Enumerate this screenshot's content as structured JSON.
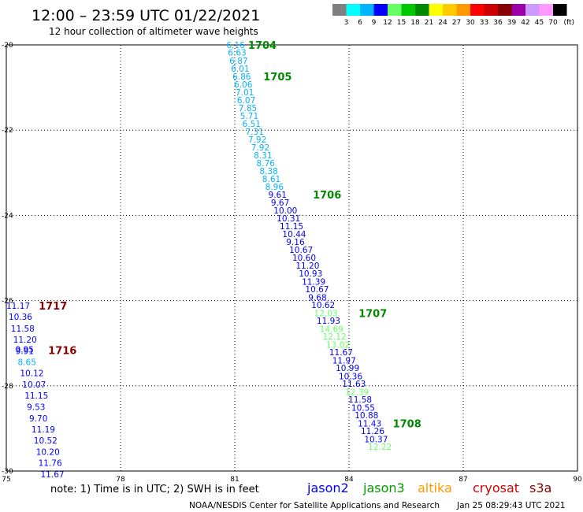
{
  "header": {
    "title": "12:00 – 23:59 UTC 01/22/2021",
    "subtitle": "12 hour collection of altimeter wave heights"
  },
  "colorbar": {
    "labels": [
      "3",
      "6",
      "9",
      "12",
      "15",
      "18",
      "21",
      "24",
      "27",
      "30",
      "33",
      "36",
      "39",
      "42",
      "45",
      "70"
    ],
    "unit": "(ft)",
    "colors": [
      "#7f7f7f",
      "#00ffff",
      "#00b4ff",
      "#0000ff",
      "#66ff66",
      "#00c800",
      "#008800",
      "#ffff00",
      "#ffcc00",
      "#ff9900",
      "#ff0000",
      "#cc0000",
      "#880000",
      "#9900aa",
      "#cc99ff",
      "#ff99ff",
      "#000000"
    ]
  },
  "footer": {
    "note": "note: 1) Time is in UTC; 2) SWH is in feet",
    "satellites": [
      {
        "name": "jason2",
        "color": "#0000ff"
      },
      {
        "name": "jason3",
        "color": "#009900"
      },
      {
        "name": "altika",
        "color": "#ff9900"
      },
      {
        "name": "cryosat",
        "color": "#cc0000"
      },
      {
        "name": "s3a",
        "color": "#880000"
      }
    ],
    "credit": "NOAA/NESDIS Center for Satellite Applications and Research",
    "timestamp": "Jan 25 08:29:43 UTC 2021"
  },
  "chart_data": {
    "type": "scatter",
    "xlim": [
      75,
      90
    ],
    "ylim": [
      -30,
      -20
    ],
    "xticks": [
      "75",
      "78",
      "81",
      "84",
      "87",
      "90"
    ],
    "yticks": [
      "-20",
      "-22",
      "-24",
      "-26",
      "-28",
      "-30"
    ],
    "grid": true,
    "points": [
      {
        "x": 80.78,
        "y": -20.0,
        "v": "6.16",
        "c": "#00b4ff"
      },
      {
        "x": 80.82,
        "y": -20.18,
        "v": "6.63",
        "c": "#00b4ff"
      },
      {
        "x": 80.86,
        "y": -20.37,
        "v": "6.87",
        "c": "#00b4ff"
      },
      {
        "x": 80.9,
        "y": -20.55,
        "v": "6.01",
        "c": "#00b4ff"
      },
      {
        "x": 80.94,
        "y": -20.74,
        "v": "6.86",
        "c": "#00b4ff"
      },
      {
        "x": 80.98,
        "y": -20.92,
        "v": "6.06",
        "c": "#00b4ff"
      },
      {
        "x": 81.02,
        "y": -21.11,
        "v": "7.01",
        "c": "#00b4ff"
      },
      {
        "x": 81.06,
        "y": -21.29,
        "v": "6.07",
        "c": "#00b4ff"
      },
      {
        "x": 81.1,
        "y": -21.48,
        "v": "7.85",
        "c": "#00b4ff"
      },
      {
        "x": 81.14,
        "y": -21.66,
        "v": "5.71",
        "c": "#00b4ff"
      },
      {
        "x": 81.2,
        "y": -21.85,
        "v": "6.51",
        "c": "#00b4ff"
      },
      {
        "x": 81.28,
        "y": -22.03,
        "v": "7.31",
        "c": "#00b4ff"
      },
      {
        "x": 81.35,
        "y": -22.22,
        "v": "7.92",
        "c": "#00b4ff"
      },
      {
        "x": 81.43,
        "y": -22.4,
        "v": "7.92",
        "c": "#00b4ff"
      },
      {
        "x": 81.5,
        "y": -22.59,
        "v": "8.31",
        "c": "#00b4ff"
      },
      {
        "x": 81.57,
        "y": -22.77,
        "v": "8.76",
        "c": "#00b4ff"
      },
      {
        "x": 81.65,
        "y": -22.96,
        "v": "8.38",
        "c": "#00b4ff"
      },
      {
        "x": 81.72,
        "y": -23.14,
        "v": "8.61",
        "c": "#00b4ff"
      },
      {
        "x": 81.8,
        "y": -23.33,
        "v": "8.96",
        "c": "#00b4ff"
      },
      {
        "x": 81.88,
        "y": -23.51,
        "v": "9.61",
        "c": "#0000ff"
      },
      {
        "x": 81.95,
        "y": -23.7,
        "v": "9.67",
        "c": "#0000ff"
      },
      {
        "x": 82.02,
        "y": -23.88,
        "v": "10.00",
        "c": "#0000ff"
      },
      {
        "x": 82.1,
        "y": -24.07,
        "v": "10.31",
        "c": "#0000ff"
      },
      {
        "x": 82.18,
        "y": -24.25,
        "v": "11.15",
        "c": "#0000ff"
      },
      {
        "x": 82.25,
        "y": -24.44,
        "v": "10.44",
        "c": "#0000ff"
      },
      {
        "x": 82.35,
        "y": -24.62,
        "v": "9.16",
        "c": "#0000ff"
      },
      {
        "x": 82.43,
        "y": -24.81,
        "v": "10.67",
        "c": "#0000ff"
      },
      {
        "x": 82.51,
        "y": -24.99,
        "v": "10.60",
        "c": "#0000ff"
      },
      {
        "x": 82.6,
        "y": -25.18,
        "v": "11.20",
        "c": "#0000ff"
      },
      {
        "x": 82.68,
        "y": -25.36,
        "v": "10.93",
        "c": "#0000ff"
      },
      {
        "x": 82.76,
        "y": -25.55,
        "v": "11.39",
        "c": "#0000ff"
      },
      {
        "x": 82.85,
        "y": -25.73,
        "v": "10.67",
        "c": "#0000ff"
      },
      {
        "x": 82.93,
        "y": -25.92,
        "v": "9.68",
        "c": "#0000ff"
      },
      {
        "x": 83.01,
        "y": -26.1,
        "v": "10.62",
        "c": "#0000ff"
      },
      {
        "x": 83.08,
        "y": -26.29,
        "v": "12.03",
        "c": "#66ff66"
      },
      {
        "x": 83.15,
        "y": -26.47,
        "v": "11.93",
        "c": "#0000ff"
      },
      {
        "x": 83.23,
        "y": -26.66,
        "v": "14.69",
        "c": "#66ff66"
      },
      {
        "x": 83.31,
        "y": -26.84,
        "v": "12.12",
        "c": "#66ff66"
      },
      {
        "x": 83.4,
        "y": -27.03,
        "v": "13.02",
        "c": "#66ff66"
      },
      {
        "x": 83.48,
        "y": -27.21,
        "v": "11.67",
        "c": "#0000ff"
      },
      {
        "x": 83.56,
        "y": -27.4,
        "v": "11.97",
        "c": "#0000ff"
      },
      {
        "x": 83.65,
        "y": -27.58,
        "v": "10.99",
        "c": "#0000ff"
      },
      {
        "x": 83.73,
        "y": -27.77,
        "v": "10.36",
        "c": "#0000ff"
      },
      {
        "x": 83.82,
        "y": -27.95,
        "v": "11.63",
        "c": "#0000ff"
      },
      {
        "x": 83.9,
        "y": -28.14,
        "v": "12.39",
        "c": "#66ff66"
      },
      {
        "x": 83.98,
        "y": -28.32,
        "v": "11.58",
        "c": "#0000ff"
      },
      {
        "x": 84.06,
        "y": -28.51,
        "v": "10.55",
        "c": "#0000ff"
      },
      {
        "x": 84.15,
        "y": -28.69,
        "v": "10.88",
        "c": "#0000ff"
      },
      {
        "x": 84.23,
        "y": -28.88,
        "v": "11.43",
        "c": "#0000ff"
      },
      {
        "x": 84.31,
        "y": -29.06,
        "v": "11.26",
        "c": "#0000ff"
      },
      {
        "x": 84.4,
        "y": -29.25,
        "v": "10.37",
        "c": "#0000ff"
      },
      {
        "x": 84.5,
        "y": -29.43,
        "v": "12.22",
        "c": "#66ff66"
      },
      {
        "x": 75.0,
        "y": -26.12,
        "v": "11.17",
        "c": "#0000ff"
      },
      {
        "x": 75.06,
        "y": -26.38,
        "v": "10.36",
        "c": "#0000ff"
      },
      {
        "x": 75.12,
        "y": -26.65,
        "v": "11.58",
        "c": "#0000ff"
      },
      {
        "x": 75.18,
        "y": -26.91,
        "v": "11.20",
        "c": "#0000ff"
      },
      {
        "x": 75.24,
        "y": -27.14,
        "v": "9.95",
        "c": "#0000ff"
      },
      {
        "x": 75.24,
        "y": -27.18,
        "v": "9.91",
        "c": "#0000ff"
      },
      {
        "x": 75.3,
        "y": -27.44,
        "v": "8.65",
        "c": "#00b4ff"
      },
      {
        "x": 75.36,
        "y": -27.7,
        "v": "10.12",
        "c": "#0000ff"
      },
      {
        "x": 75.42,
        "y": -27.97,
        "v": "10.07",
        "c": "#0000ff"
      },
      {
        "x": 75.48,
        "y": -28.23,
        "v": "11.15",
        "c": "#0000ff"
      },
      {
        "x": 75.54,
        "y": -28.49,
        "v": "9.53",
        "c": "#0000ff"
      },
      {
        "x": 75.6,
        "y": -28.76,
        "v": "9.70",
        "c": "#0000ff"
      },
      {
        "x": 75.66,
        "y": -29.02,
        "v": "11.19",
        "c": "#0000ff"
      },
      {
        "x": 75.72,
        "y": -29.28,
        "v": "10.52",
        "c": "#0000ff"
      },
      {
        "x": 75.78,
        "y": -29.55,
        "v": "10.20",
        "c": "#0000ff"
      },
      {
        "x": 75.84,
        "y": -29.81,
        "v": "11.76",
        "c": "#0000ff"
      },
      {
        "x": 75.9,
        "y": -30.07,
        "v": "11.67",
        "c": "#0000ff"
      }
    ],
    "time_labels": [
      {
        "x": 81.35,
        "y": -20.0,
        "v": "1704",
        "c": "#008800"
      },
      {
        "x": 81.75,
        "y": -20.74,
        "v": "1705",
        "c": "#008800"
      },
      {
        "x": 83.05,
        "y": -23.51,
        "v": "1706",
        "c": "#008800"
      },
      {
        "x": 84.25,
        "y": -26.29,
        "v": "1707",
        "c": "#008800"
      },
      {
        "x": 85.15,
        "y": -28.88,
        "v": "1708",
        "c": "#008800"
      },
      {
        "x": 75.85,
        "y": -26.12,
        "v": "1717",
        "c": "#880000"
      },
      {
        "x": 76.1,
        "y": -27.16,
        "v": "1716",
        "c": "#880000"
      }
    ]
  }
}
